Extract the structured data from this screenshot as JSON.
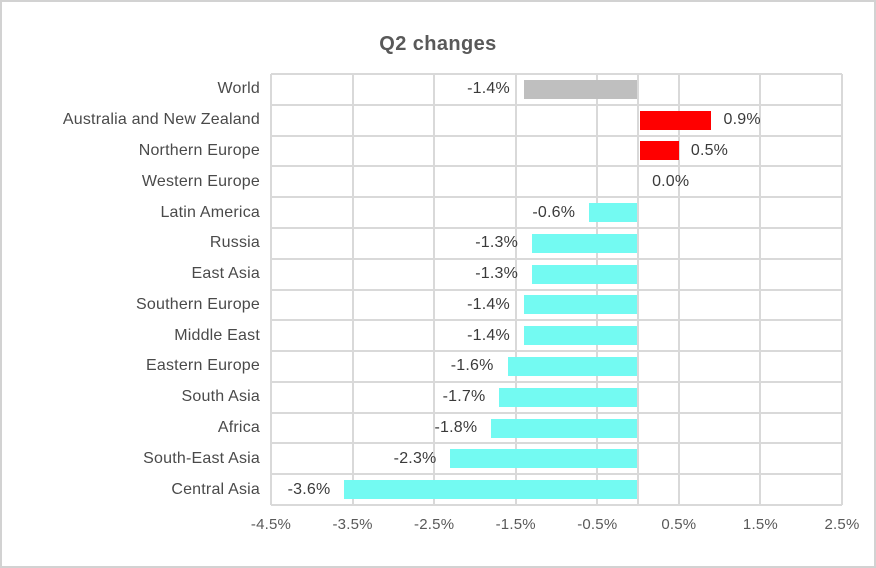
{
  "chart_data": {
    "type": "bar",
    "orientation": "horizontal",
    "title": "Q2 changes",
    "categories": [
      "World",
      "Australia and New Zealand",
      "Northern Europe",
      "Western Europe",
      "Latin America",
      "Russia",
      "East Asia",
      "Southern Europe",
      "Middle East",
      "Eastern Europe",
      "South Asia",
      "Africa",
      "South-East Asia",
      "Central Asia"
    ],
    "values": [
      -1.4,
      0.9,
      0.5,
      0.0,
      -0.6,
      -1.3,
      -1.3,
      -1.4,
      -1.4,
      -1.6,
      -1.7,
      -1.8,
      -2.3,
      -3.6
    ],
    "value_labels": [
      "-1.4%",
      "0.9%",
      "0.5%",
      "0.0%",
      "-0.6%",
      "-1.3%",
      "-1.3%",
      "-1.4%",
      "-1.4%",
      "-1.6%",
      "-1.7%",
      "-1.8%",
      "-2.3%",
      "-3.6%"
    ],
    "bar_colors": [
      "#BFBFBF",
      "#FF0000",
      "#FF0000",
      null,
      "#73FAF2",
      "#73FAF2",
      "#73FAF2",
      "#73FAF2",
      "#73FAF2",
      "#73FAF2",
      "#73FAF2",
      "#73FAF2",
      "#73FAF2",
      "#73FAF2"
    ],
    "x_tick_labels": [
      "-4.5%",
      "-3.5%",
      "-2.5%",
      "-1.5%",
      "-0.5%",
      "0.5%",
      "1.5%",
      "2.5%"
    ],
    "x_tick_values": [
      -4.5,
      -3.5,
      -2.5,
      -1.5,
      -0.5,
      0.5,
      1.5,
      2.5
    ],
    "xlim": [
      -4.5,
      2.5
    ],
    "grid": true,
    "legend": "none",
    "colors": {
      "grid": "#D9D9D9",
      "zero_line": "#D9D9D9",
      "title_text": "#595959",
      "category_text": "#4A4A4A",
      "value_text": "#3A3A3A",
      "axis_text": "#595959",
      "frame": "#D2D2D2",
      "background": "#FFFFFF",
      "bar_negative": "#73FAF2",
      "bar_positive": "#FF0000",
      "bar_world": "#BFBFBF"
    }
  }
}
